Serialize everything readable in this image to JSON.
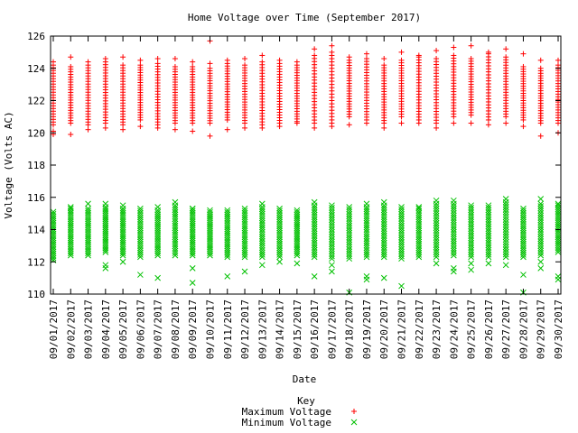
{
  "chart_data": {
    "type": "scatter",
    "title": "Home Voltage over Time (September 2017)",
    "xlabel": "Date",
    "ylabel": "Voltage (Volts AC)",
    "ylim": [
      110,
      126
    ],
    "yticks": [
      110,
      112,
      114,
      116,
      118,
      120,
      122,
      124,
      126
    ],
    "grid": false,
    "legend_placement": "bottom-center",
    "legend_title": "Key",
    "x": [
      "09/01/2017",
      "09/02/2017",
      "09/03/2017",
      "09/04/2017",
      "09/05/2017",
      "09/06/2017",
      "09/07/2017",
      "09/08/2017",
      "09/09/2017",
      "09/10/2017",
      "09/11/2017",
      "09/12/2017",
      "09/13/2017",
      "09/14/2017",
      "09/15/2017",
      "09/16/2017",
      "09/17/2017",
      "09/18/2017",
      "09/19/2017",
      "09/20/2017",
      "09/21/2017",
      "09/22/2017",
      "09/23/2017",
      "09/24/2017",
      "09/25/2017",
      "09/26/2017",
      "09/27/2017",
      "09/28/2017",
      "09/29/2017",
      "09/30/2017"
    ],
    "series": [
      {
        "name": "Maximum Voltage",
        "color": "#ff0000",
        "marker": "plus",
        "band_low": [
          120.5,
          120.6,
          120.5,
          120.6,
          120.5,
          120.8,
          120.5,
          120.6,
          120.6,
          120.6,
          120.8,
          120.6,
          120.5,
          120.6,
          120.7,
          120.6,
          120.6,
          121.0,
          120.8,
          120.6,
          121.0,
          120.8,
          120.6,
          121.0,
          121.1,
          120.8,
          121.0,
          120.8,
          120.6,
          120.6
        ],
        "band_high": [
          124.2,
          124.1,
          124.2,
          124.4,
          124.2,
          124.2,
          124.3,
          124.1,
          124.1,
          124.0,
          124.3,
          124.2,
          124.4,
          124.3,
          124.2,
          124.8,
          125.0,
          124.5,
          124.6,
          124.2,
          124.5,
          124.7,
          124.6,
          124.8,
          124.6,
          124.9,
          124.7,
          124.1,
          124.0,
          124.2
        ],
        "outliers": [
          [
            0,
            119.9
          ],
          [
            0,
            120.1
          ],
          [
            0,
            124.4
          ],
          [
            1,
            119.9
          ],
          [
            1,
            124.7
          ],
          [
            2,
            120.2
          ],
          [
            2,
            124.4
          ],
          [
            3,
            120.3
          ],
          [
            3,
            124.6
          ],
          [
            4,
            120.2
          ],
          [
            4,
            124.7
          ],
          [
            5,
            120.4
          ],
          [
            5,
            124.5
          ],
          [
            6,
            120.3
          ],
          [
            6,
            124.6
          ],
          [
            7,
            120.2
          ],
          [
            7,
            124.6
          ],
          [
            8,
            120.1
          ],
          [
            8,
            124.4
          ],
          [
            9,
            119.8
          ],
          [
            9,
            125.7
          ],
          [
            9,
            124.3
          ],
          [
            10,
            120.2
          ],
          [
            10,
            124.5
          ],
          [
            11,
            120.3
          ],
          [
            11,
            124.6
          ],
          [
            12,
            120.3
          ],
          [
            12,
            124.8
          ],
          [
            13,
            120.4
          ],
          [
            13,
            124.5
          ],
          [
            14,
            120.6
          ],
          [
            14,
            124.4
          ],
          [
            15,
            120.3
          ],
          [
            15,
            125.2
          ],
          [
            16,
            120.4
          ],
          [
            16,
            125.4
          ],
          [
            17,
            120.5
          ],
          [
            17,
            124.7
          ],
          [
            18,
            120.6
          ],
          [
            18,
            124.9
          ],
          [
            19,
            120.3
          ],
          [
            19,
            124.6
          ],
          [
            20,
            120.6
          ],
          [
            20,
            125.0
          ],
          [
            21,
            120.6
          ],
          [
            21,
            124.8
          ],
          [
            22,
            120.3
          ],
          [
            22,
            125.1
          ],
          [
            23,
            120.6
          ],
          [
            23,
            125.3
          ],
          [
            24,
            120.6
          ],
          [
            24,
            125.4
          ],
          [
            25,
            120.5
          ],
          [
            25,
            125.0
          ],
          [
            26,
            120.6
          ],
          [
            26,
            125.2
          ],
          [
            27,
            120.4
          ],
          [
            27,
            124.9
          ],
          [
            28,
            119.8
          ],
          [
            28,
            124.5
          ],
          [
            29,
            120.0
          ],
          [
            29,
            124.5
          ]
        ]
      },
      {
        "name": "Minimum Voltage",
        "color": "#00c000",
        "marker": "cross",
        "band_low": [
          112.1,
          112.4,
          112.4,
          112.6,
          112.4,
          112.3,
          112.4,
          112.4,
          112.4,
          112.4,
          112.3,
          112.3,
          112.3,
          112.3,
          112.4,
          112.3,
          112.2,
          112.2,
          112.3,
          112.3,
          112.2,
          112.3,
          112.3,
          112.4,
          112.3,
          112.3,
          112.3,
          112.3,
          112.4,
          112.6
        ],
        "band_high": [
          115.1,
          115.3,
          115.3,
          115.4,
          115.3,
          115.3,
          115.2,
          115.5,
          115.3,
          115.2,
          115.2,
          115.3,
          115.4,
          115.3,
          115.2,
          115.5,
          115.5,
          115.4,
          115.4,
          115.5,
          115.4,
          115.3,
          115.6,
          115.6,
          115.5,
          115.5,
          115.7,
          115.3,
          115.6,
          115.5
        ],
        "outliers": [
          [
            1,
            115.4
          ],
          [
            2,
            115.6
          ],
          [
            3,
            111.6
          ],
          [
            3,
            111.8
          ],
          [
            3,
            115.6
          ],
          [
            4,
            112.0
          ],
          [
            4,
            115.5
          ],
          [
            5,
            111.2
          ],
          [
            6,
            111.0
          ],
          [
            6,
            115.4
          ],
          [
            7,
            115.7
          ],
          [
            8,
            111.6
          ],
          [
            8,
            110.7
          ],
          [
            8,
            115.3
          ],
          [
            10,
            111.1
          ],
          [
            11,
            111.4
          ],
          [
            12,
            111.8
          ],
          [
            12,
            115.6
          ],
          [
            13,
            112.0
          ],
          [
            14,
            111.9
          ],
          [
            15,
            111.1
          ],
          [
            15,
            115.7
          ],
          [
            16,
            111.4
          ],
          [
            16,
            111.8
          ],
          [
            17,
            110.1
          ],
          [
            18,
            110.9
          ],
          [
            18,
            111.1
          ],
          [
            18,
            115.6
          ],
          [
            19,
            111.0
          ],
          [
            19,
            115.7
          ],
          [
            20,
            110.5
          ],
          [
            21,
            115.4
          ],
          [
            22,
            111.9
          ],
          [
            22,
            115.8
          ],
          [
            23,
            111.4
          ],
          [
            23,
            111.6
          ],
          [
            23,
            115.8
          ],
          [
            24,
            111.5
          ],
          [
            24,
            111.9
          ],
          [
            25,
            111.9
          ],
          [
            26,
            111.8
          ],
          [
            26,
            115.9
          ],
          [
            27,
            111.2
          ],
          [
            27,
            110.1
          ],
          [
            28,
            111.6
          ],
          [
            28,
            112.0
          ],
          [
            28,
            115.9
          ],
          [
            29,
            110.9
          ],
          [
            29,
            111.1
          ],
          [
            29,
            115.6
          ]
        ]
      }
    ]
  }
}
